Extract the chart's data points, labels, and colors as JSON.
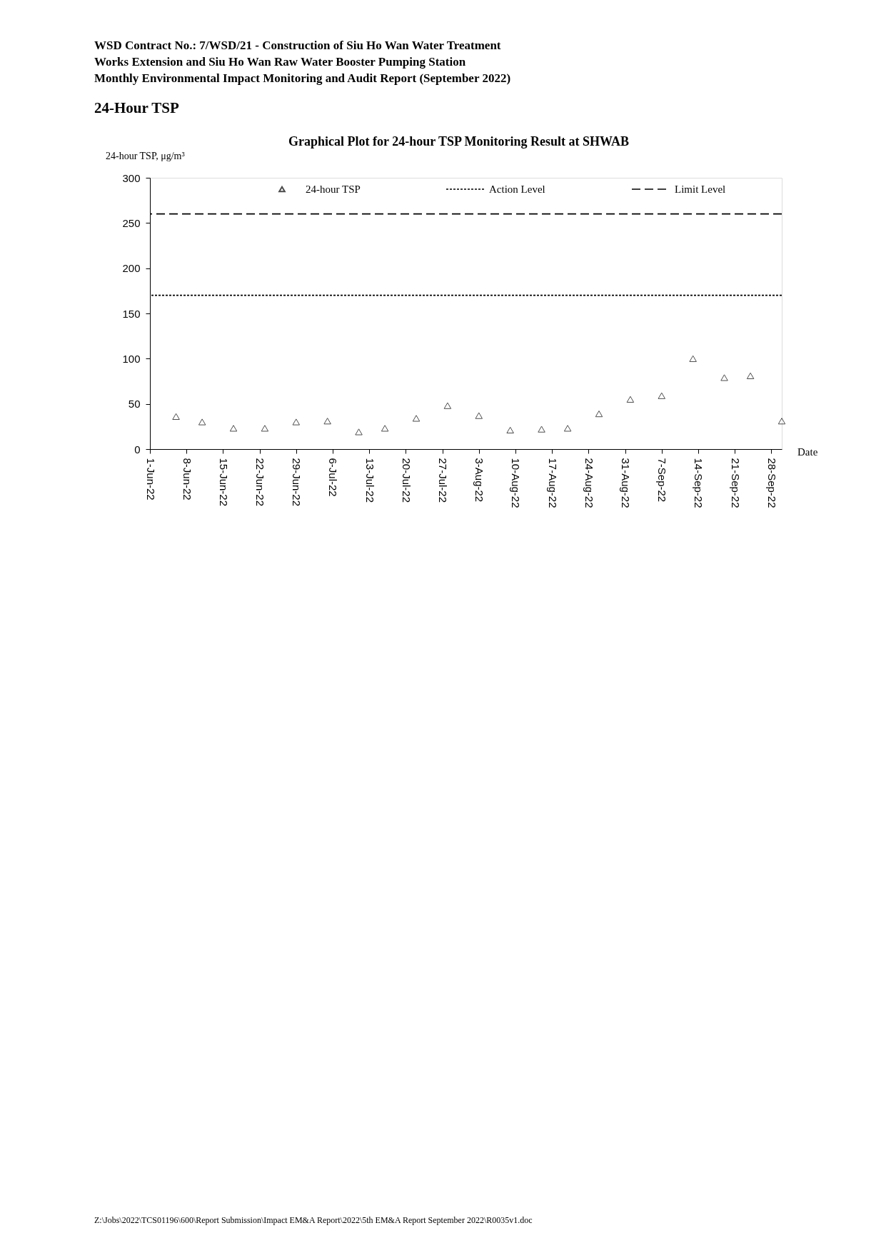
{
  "chart_data": {
    "type": "scatter",
    "title": "Graphical Plot for 24-hour TSP Monitoring Result at SHWAB",
    "ylabel": "24-hour TSP, μg/m³",
    "xlabel": "Date",
    "annotations": [
      "WSD Contract No.: 7/WSD/21 - Construction of Siu Ho Wan Water Treatment",
      "Works Extension and Siu Ho Wan Raw Water Booster Pumping Station",
      "Monthly Environmental Impact Monitoring and Audit Report (September 2022)",
      "24-Hour TSP",
      "Z:\\Jobs\\2022\\TCS01196\\600\\Report Submission\\Impact EM&A Report\\2022\\5th EM&A Report September 2022\\R0035v1.doc"
    ],
    "x": [
      "2022-06-06",
      "2022-06-11",
      "2022-06-17",
      "2022-06-23",
      "2022-06-29",
      "2022-07-05",
      "2022-07-11",
      "2022-07-16",
      "2022-07-22",
      "2022-07-28",
      "2022-08-03",
      "2022-08-09",
      "2022-08-15",
      "2022-08-20",
      "2022-08-26",
      "2022-09-01",
      "2022-09-07",
      "2022-09-13",
      "2022-09-19",
      "2022-09-24",
      "2022-09-30"
    ],
    "series": [
      {
        "name": "24-hour TSP",
        "color": "#000000",
        "values": [
          36,
          30,
          23,
          23,
          30,
          31,
          19,
          23,
          34,
          48,
          37,
          21,
          22,
          23,
          39,
          55,
          59,
          100,
          79,
          81,
          31
        ]
      }
    ],
    "marker": "triangle",
    "ref_lines": [
      {
        "axis": "y",
        "value": 170,
        "label": "Action Level",
        "color": "#000000",
        "line_style": "dotted"
      },
      {
        "axis": "y",
        "value": 260,
        "label": "Limit Level",
        "color": "#000000",
        "line_style": "dashed"
      }
    ],
    "xlim": [
      "2022-06-01",
      "2022-09-30"
    ],
    "xticks": [
      {
        "value": "2022-06-01",
        "label": "1-Jun-22"
      },
      {
        "value": "2022-06-08",
        "label": "8-Jun-22"
      },
      {
        "value": "2022-06-15",
        "label": "15-Jun-22"
      },
      {
        "value": "2022-06-22",
        "label": "22-Jun-22"
      },
      {
        "value": "2022-06-29",
        "label": "29-Jun-22"
      },
      {
        "value": "2022-07-06",
        "label": "6-Jul-22"
      },
      {
        "value": "2022-07-13",
        "label": "13-Jul-22"
      },
      {
        "value": "2022-07-20",
        "label": "20-Jul-22"
      },
      {
        "value": "2022-07-27",
        "label": "27-Jul-22"
      },
      {
        "value": "2022-08-03",
        "label": "3-Aug-22"
      },
      {
        "value": "2022-08-10",
        "label": "10-Aug-22"
      },
      {
        "value": "2022-08-17",
        "label": "17-Aug-22"
      },
      {
        "value": "2022-08-24",
        "label": "24-Aug-22"
      },
      {
        "value": "2022-08-31",
        "label": "31-Aug-22"
      },
      {
        "value": "2022-09-07",
        "label": "7-Sep-22"
      },
      {
        "value": "2022-09-14",
        "label": "14-Sep-22"
      },
      {
        "value": "2022-09-21",
        "label": "21-Sep-22"
      },
      {
        "value": "2022-09-28",
        "label": "28-Sep-22"
      }
    ],
    "ylim": [
      0,
      300
    ],
    "yticks": [
      0,
      50,
      100,
      150,
      200,
      250,
      300
    ],
    "grid": false,
    "legend": "top"
  }
}
